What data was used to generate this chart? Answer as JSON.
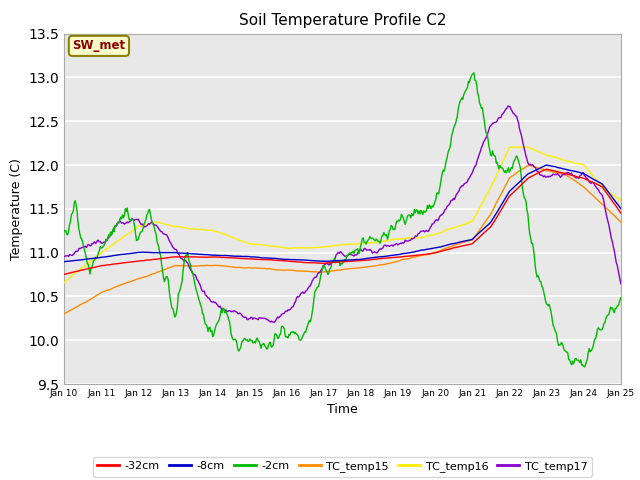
{
  "title": "Soil Temperature Profile C2",
  "xlabel": "Time",
  "ylabel": "Temperature (C)",
  "ylim": [
    9.5,
    13.5
  ],
  "xlim": [
    0,
    15
  ],
  "plot_bg_color": "#e8e8e8",
  "fig_bg_color": "#ffffff",
  "annotation_text": "SW_met",
  "annotation_color": "#8b0000",
  "annotation_bg": "#ffffcc",
  "annotation_border": "#8b8000",
  "xtick_labels": [
    "Jan 10",
    "Jan 11",
    "Jan 12",
    "Jan 13",
    "Jan 14",
    "Jan 15",
    "Jan 16",
    "Jan 17",
    "Jan 18",
    "Jan 19",
    "Jan 20",
    "Jan 21",
    "Jan 22",
    "Jan 23",
    "Jan 24",
    "Jan 25"
  ],
  "ytick_labels": [
    "9.5",
    "10.0",
    "10.5",
    "11.0",
    "11.5",
    "12.0",
    "12.5",
    "13.0",
    "13.5"
  ],
  "series_colors": {
    "-32cm": "#ff0000",
    "-8cm": "#0000cd",
    "-2cm": "#00bb00",
    "TC_temp15": "#ff8c00",
    "TC_temp16": "#ffee00",
    "TC_temp17": "#8800cc"
  },
  "legend_labels": [
    "-32cm",
    "-8cm",
    "-2cm",
    "TC_temp15",
    "TC_temp16",
    "TC_temp17"
  ]
}
